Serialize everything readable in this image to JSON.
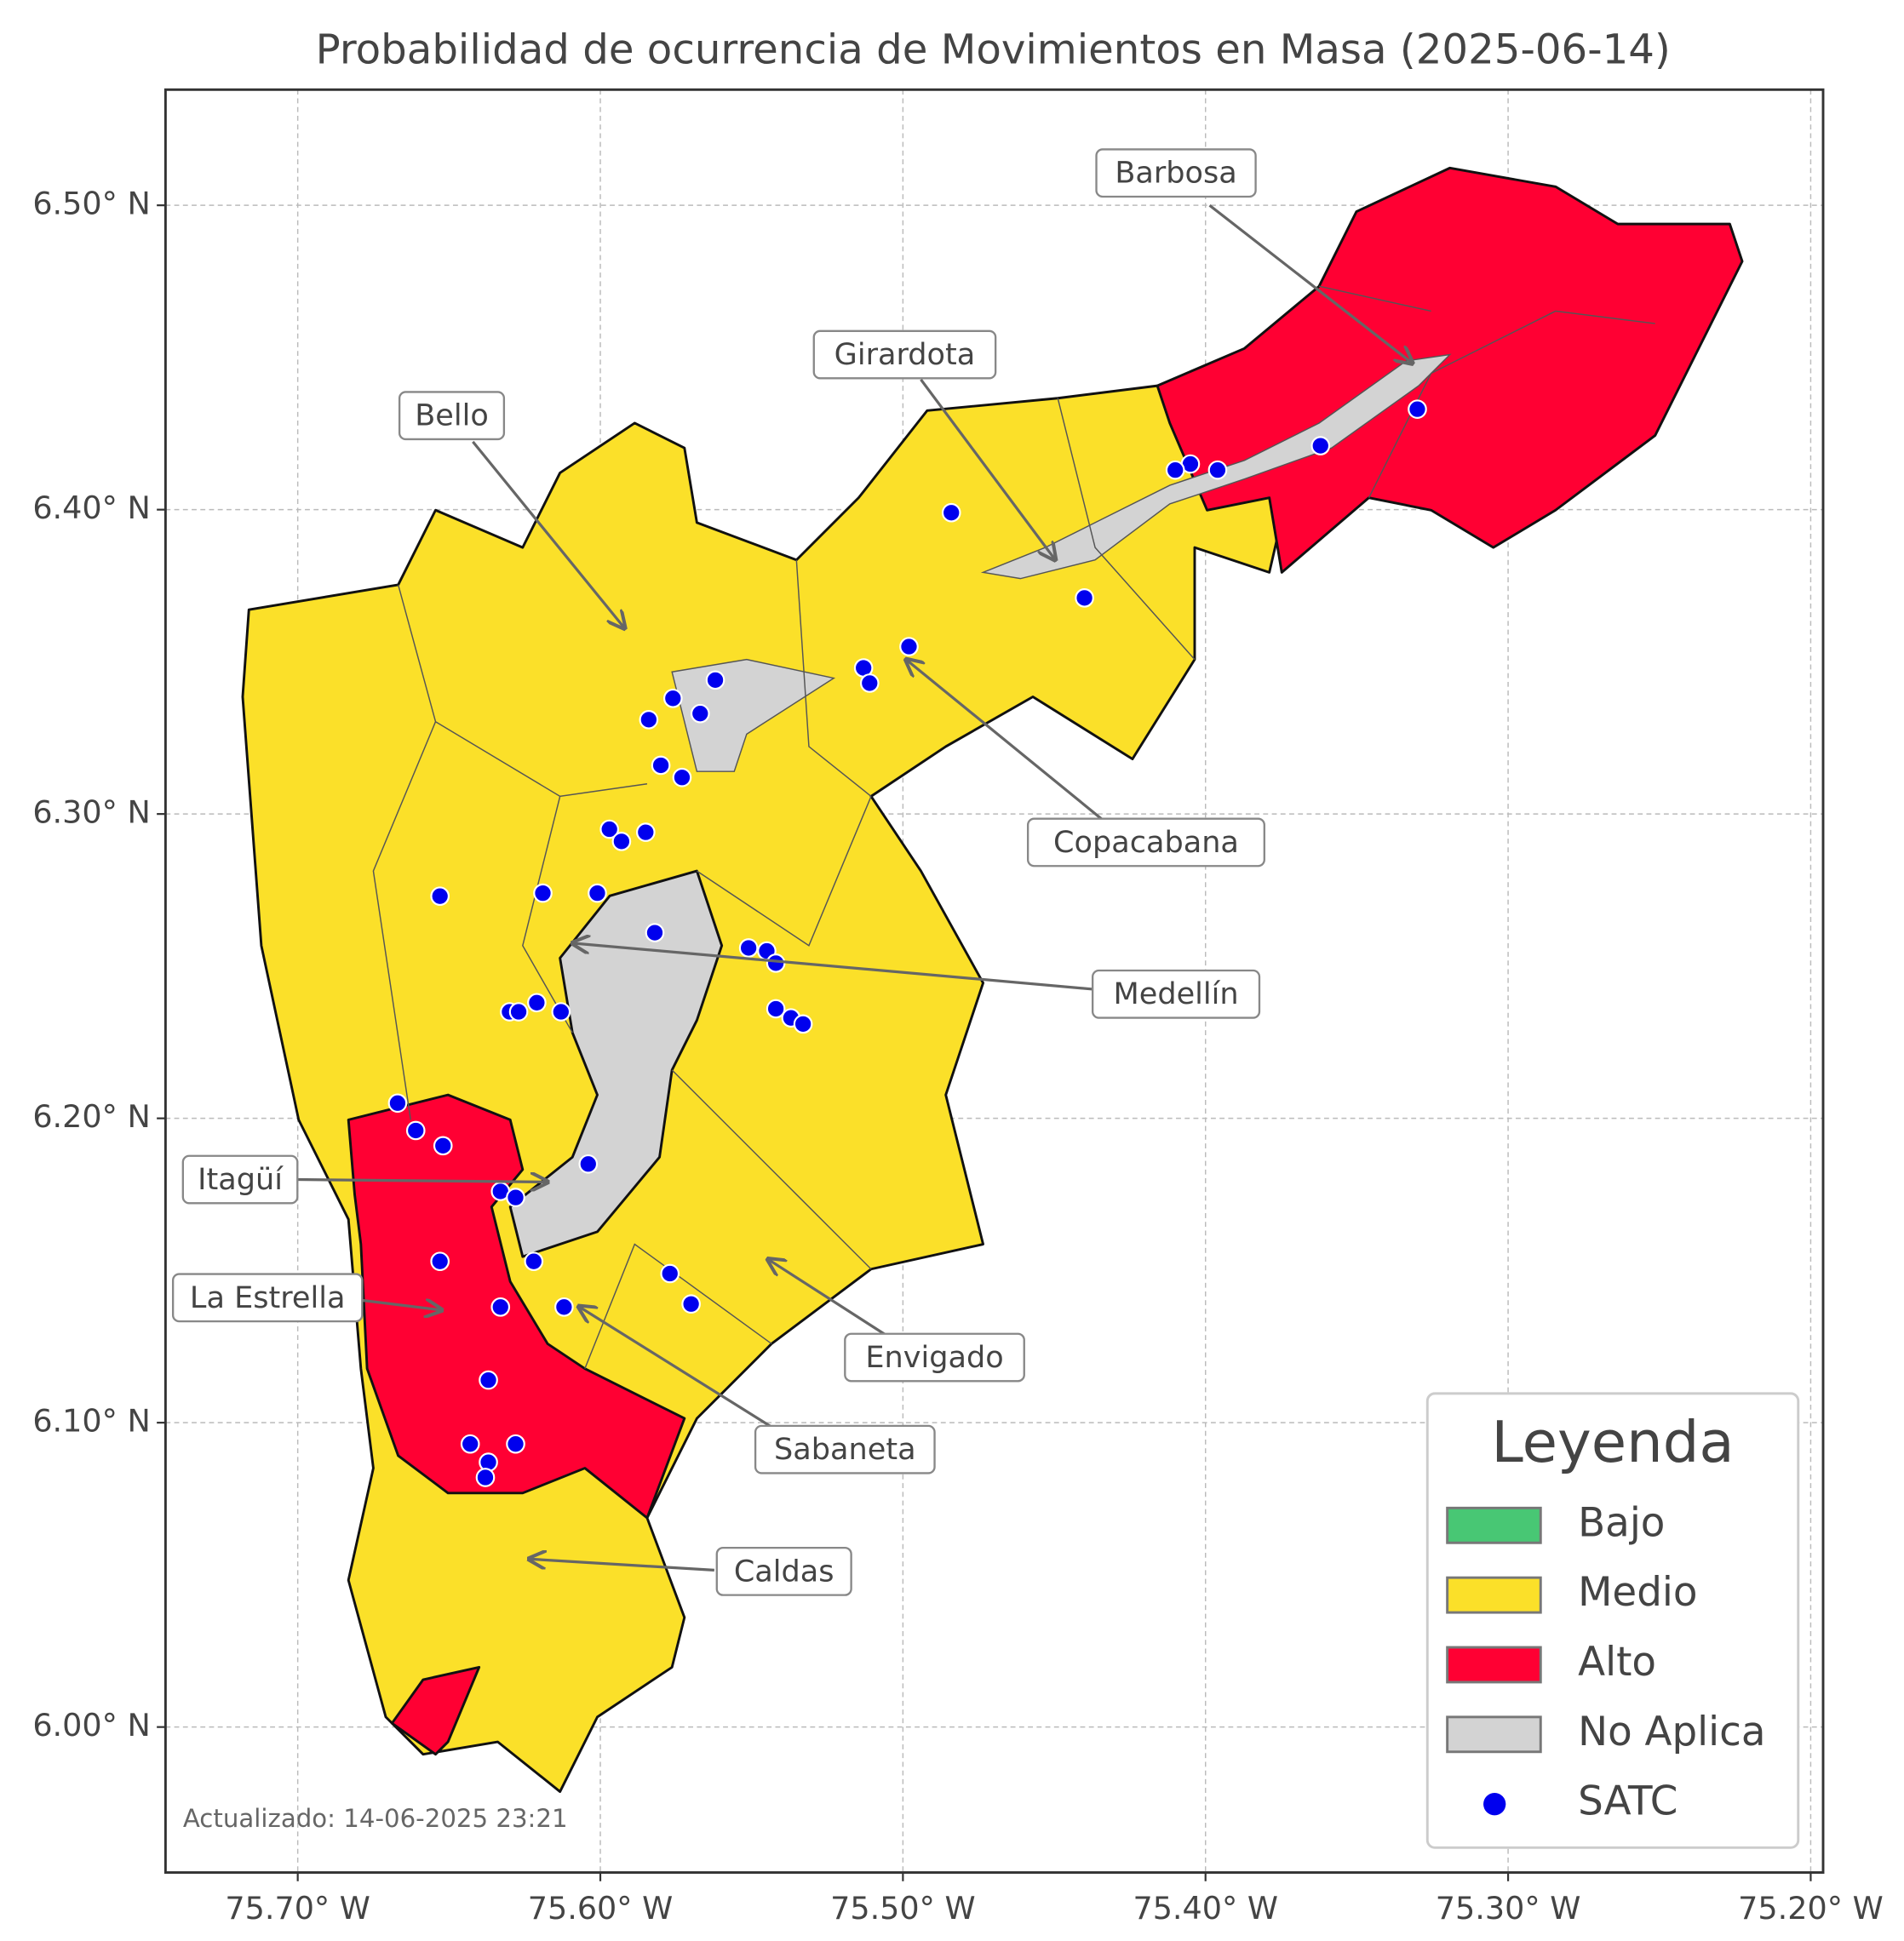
{
  "chart_data": {
    "type": "map",
    "title": "Probabilidad de ocurrencia de Movimientos en Masa (2025-06-14)",
    "xlim": [
      -75.7437,
      -75.1959
    ],
    "ylim": [
      5.9522,
      6.538
    ],
    "xticks": [
      {
        "value": -75.7,
        "label": "75.70° W"
      },
      {
        "value": -75.6,
        "label": "75.60° W"
      },
      {
        "value": -75.5,
        "label": "75.50° W"
      },
      {
        "value": -75.4,
        "label": "75.40° W"
      },
      {
        "value": -75.3,
        "label": "75.30° W"
      },
      {
        "value": -75.2,
        "label": "75.20° W"
      }
    ],
    "yticks": [
      {
        "value": 6.0,
        "label": "6.00° N"
      },
      {
        "value": 6.1,
        "label": "6.10° N"
      },
      {
        "value": 6.2,
        "label": "6.20° N"
      },
      {
        "value": 6.3,
        "label": "6.30° N"
      },
      {
        "value": 6.4,
        "label": "6.40° N"
      },
      {
        "value": 6.5,
        "label": "6.50° N"
      }
    ],
    "grid": true,
    "annotations": [
      "Barbosa",
      "Girardota",
      "Bello",
      "Copacabana",
      "Medellín",
      "Itagüí",
      "La Estrella",
      "Envigado",
      "Sabaneta",
      "Caldas"
    ],
    "legend": {
      "title": "Leyenda",
      "position": "lower right",
      "items": [
        {
          "name": "Bajo",
          "color": "#48c774"
        },
        {
          "name": "Medio",
          "color": "#fbe029"
        },
        {
          "name": "Alto",
          "color": "#ff0033"
        },
        {
          "name": "No Aplica",
          "color": "#d3d3d3"
        },
        {
          "name": "SATC",
          "color": "#0000ee"
        }
      ]
    },
    "footnote": "Actualizado: 14-06-2025 23:21",
    "points": {
      "name": "SATC",
      "color": "#0000ee",
      "x": [
        -75.33,
        -75.362,
        -75.396,
        -75.405,
        -75.41,
        -75.484,
        -75.44,
        -75.498,
        -75.513,
        -75.511,
        -75.562,
        -75.576,
        -75.567,
        -75.584,
        -75.58,
        -75.573,
        -75.597,
        -75.593,
        -75.585,
        -75.653,
        -75.619,
        -75.601,
        -75.582,
        -75.551,
        -75.545,
        -75.542,
        -75.542,
        -75.537,
        -75.533,
        -75.63,
        -75.627,
        -75.621,
        -75.613,
        -75.667,
        -75.661,
        -75.652,
        -75.604,
        -75.633,
        -75.628,
        -75.653,
        -75.622,
        -75.577,
        -75.57,
        -75.633,
        -75.612,
        -75.637,
        -75.643,
        -75.628,
        -75.637,
        -75.638
      ],
      "y": [
        6.433,
        6.421,
        6.413,
        6.415,
        6.413,
        6.399,
        6.371,
        6.355,
        6.348,
        6.343,
        6.344,
        6.338,
        6.333,
        6.331,
        6.316,
        6.312,
        6.295,
        6.291,
        6.294,
        6.273,
        6.274,
        6.274,
        6.261,
        6.256,
        6.255,
        6.251,
        6.236,
        6.233,
        6.231,
        6.235,
        6.235,
        6.238,
        6.235,
        6.205,
        6.196,
        6.191,
        6.185,
        6.176,
        6.174,
        6.153,
        6.153,
        6.149,
        6.139,
        6.138,
        6.138,
        6.114,
        6.093,
        6.093,
        6.087,
        6.082
      ]
    }
  }
}
